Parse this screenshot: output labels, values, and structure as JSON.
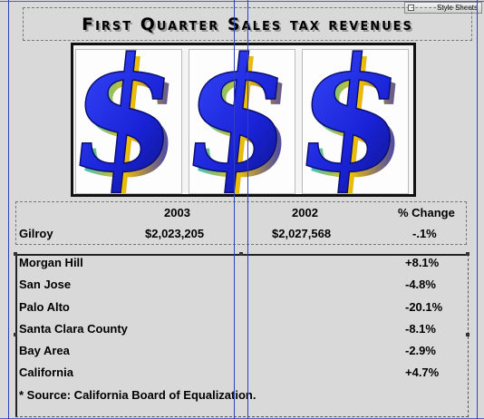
{
  "palette": {
    "label": "Style Sheets"
  },
  "title": "First Quarter Sales tax revenues",
  "headers": {
    "y2003": "2003",
    "y2002": "2002",
    "change": "% Change"
  },
  "gilroy": {
    "name": "Gilroy",
    "v2003": "$2,023,205",
    "v2002": "$2,027,568",
    "change": "-.1%"
  },
  "comparisons": [
    {
      "name": "Morgan Hill",
      "change": "+8.1%"
    },
    {
      "name": "San Jose",
      "change": "-4.8%"
    },
    {
      "name": "Palo Alto",
      "change": "-20.1%"
    },
    {
      "name": "Santa Clara County",
      "change": "-8.1%"
    },
    {
      "name": "Bay Area",
      "change": "-2.9%"
    },
    {
      "name": "California",
      "change": "+4.7%"
    }
  ],
  "source": "* Source: California Board of Equalization.",
  "colors": {
    "dollar_blue": "#1e2fe0",
    "guide": "#2f3fbf",
    "canvas": "#d9d9d9"
  },
  "icons": [
    "dollar-sign-icon",
    "dollar-sign-icon",
    "dollar-sign-icon"
  ]
}
